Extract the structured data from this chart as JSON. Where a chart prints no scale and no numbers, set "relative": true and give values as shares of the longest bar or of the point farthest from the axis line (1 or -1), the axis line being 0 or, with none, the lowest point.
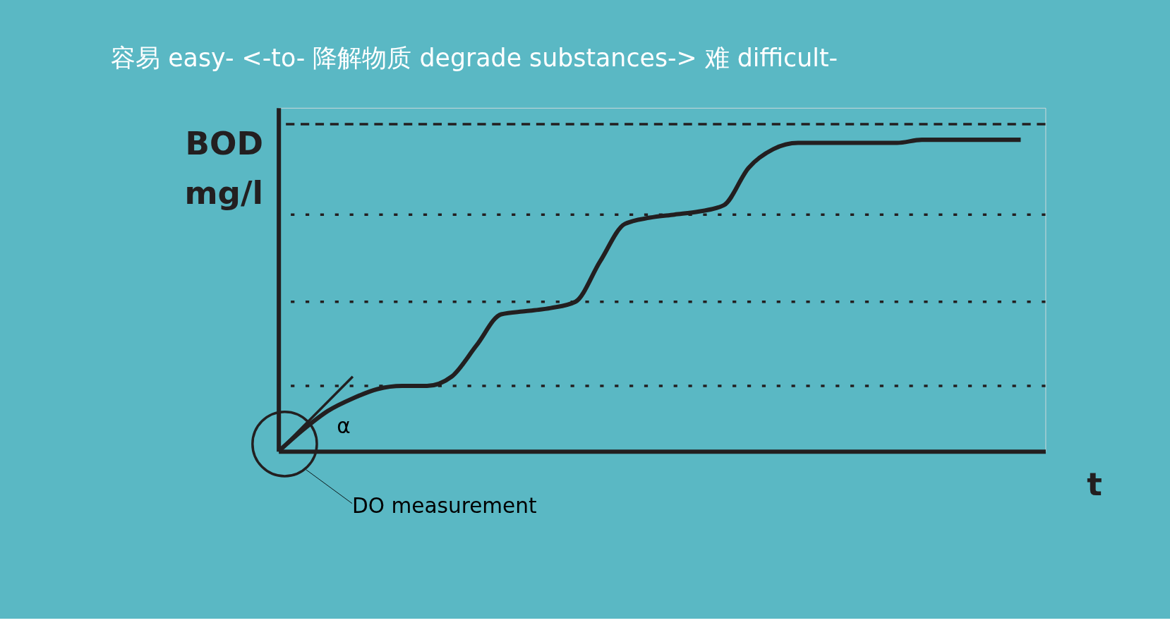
{
  "chart_data": {
    "type": "line",
    "title": "容易 easy- <-to- 降解物质 degrade substances->  难 difficult-",
    "xlabel": "t",
    "ylabel": "BOD mg/l",
    "relative": true,
    "grid": false,
    "marker": "none",
    "line_style": "solid",
    "categories": [
      null,
      null,
      null,
      null,
      null,
      null,
      null,
      null,
      null,
      null,
      null,
      null,
      null,
      null,
      null,
      null,
      null,
      null,
      null,
      null,
      null,
      null,
      null,
      null,
      null,
      null,
      null,
      null,
      null,
      null,
      null
    ],
    "series": [
      {
        "color": "#231f20",
        "values": [
          0,
          0.07,
          0.13,
          0.17,
          0.2,
          0.21,
          0.21,
          0.24,
          0.34,
          0.44,
          0.45,
          0.46,
          0.48,
          0.61,
          0.73,
          0.75,
          0.76,
          0.77,
          0.79,
          0.91,
          0.97,
          0.99,
          0.99,
          0.99,
          0.99,
          0.99,
          1.0,
          1.0,
          1.0,
          1.0,
          1.0
        ]
      },
      {
        "type": "line",
        "color": "#231f20",
        "values": [
          0,
          null,
          null,
          0.24,
          null,
          null,
          null,
          null,
          null,
          null,
          null,
          null,
          null,
          null,
          null,
          null,
          null,
          null,
          null,
          null,
          null,
          null,
          null,
          null,
          null,
          null,
          null,
          null,
          null,
          null,
          null
        ]
      }
    ],
    "ref_lines": [
      {
        "axis": "y",
        "value": 1.05,
        "line_style": "dashed",
        "color": "#231f20"
      },
      {
        "axis": "y",
        "value": 0.76,
        "line_style": "dotted",
        "color": "#231f20"
      },
      {
        "axis": "y",
        "value": 0.48,
        "line_style": "dotted",
        "color": "#231f20"
      },
      {
        "axis": "y",
        "value": 0.21,
        "line_style": "dotted",
        "color": "#231f20"
      }
    ],
    "annotations": [
      "α",
      "DO measurement"
    ]
  }
}
